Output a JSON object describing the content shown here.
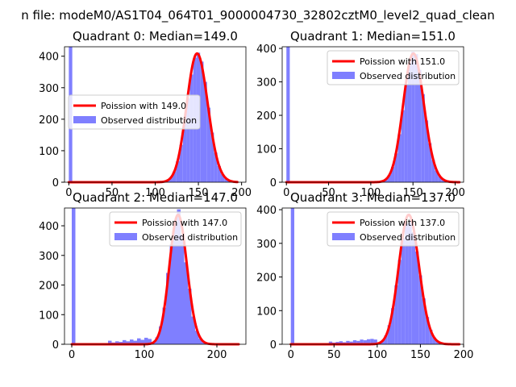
{
  "suptitle": "n file: modeM0/AS1T04_064T01_9000004730_32802cztM0_level2_quad_clean",
  "colors": {
    "hist": "#7f7fff",
    "fit": "#ff0000",
    "axis": "#000000"
  },
  "chart_data": [
    {
      "type": "bar+line",
      "title": "Quadrant 0: Median=149.0",
      "median": 149.0,
      "xlim": [
        -5,
        205
      ],
      "ylim": [
        0,
        430
      ],
      "xticks": [
        0,
        50,
        100,
        150,
        200
      ],
      "yticks": [
        0,
        100,
        200,
        300,
        400
      ],
      "bin_width": 4,
      "outlier_bins": [
        {
          "x": 0,
          "count": 430
        },
        {
          "x": 84,
          "count": 3
        },
        {
          "x": 88,
          "count": 3
        },
        {
          "x": 92,
          "count": 2
        },
        {
          "x": 96,
          "count": 1
        },
        {
          "x": 100,
          "count": 2
        },
        {
          "x": 104,
          "count": 1
        },
        {
          "x": 108,
          "count": 2
        },
        {
          "x": 112,
          "count": 4
        },
        {
          "x": 116,
          "count": 6
        }
      ],
      "fit_range": [
        0,
        195
      ],
      "legend": {
        "fit": "Poission with 149.0",
        "hist": "Observed distribution",
        "loc": "center-left"
      }
    },
    {
      "type": "bar+line",
      "title": "Quadrant 1: Median=151.0",
      "median": 151.0,
      "xlim": [
        -5,
        210
      ],
      "ylim": [
        0,
        405
      ],
      "xticks": [
        0,
        50,
        100,
        150,
        200
      ],
      "yticks": [
        0,
        100,
        200,
        300,
        400
      ],
      "bin_width": 4,
      "outlier_bins": [
        {
          "x": 0,
          "count": 405
        },
        {
          "x": 88,
          "count": 2
        },
        {
          "x": 92,
          "count": 2
        },
        {
          "x": 96,
          "count": 2
        },
        {
          "x": 100,
          "count": 1
        },
        {
          "x": 104,
          "count": 2
        },
        {
          "x": 108,
          "count": 2
        },
        {
          "x": 112,
          "count": 3
        },
        {
          "x": 116,
          "count": 5
        }
      ],
      "fit_range": [
        0,
        205
      ],
      "legend": {
        "fit": "Poission with 151.0",
        "hist": "Observed distribution",
        "loc": "upper-right"
      }
    },
    {
      "type": "bar+line",
      "title": "Quadrant 2: Median=147.0",
      "median": 147.0,
      "xlim": [
        -10,
        240
      ],
      "ylim": [
        0,
        460
      ],
      "xticks": [
        0,
        100,
        200
      ],
      "yticks": [
        0,
        100,
        200,
        300,
        400
      ],
      "bin_width": 5,
      "outlier_bins": [
        {
          "x": 0,
          "count": 460
        },
        {
          "x": 45,
          "count": 4
        },
        {
          "x": 50,
          "count": 12
        },
        {
          "x": 55,
          "count": 6
        },
        {
          "x": 60,
          "count": 10
        },
        {
          "x": 65,
          "count": 8
        },
        {
          "x": 70,
          "count": 14
        },
        {
          "x": 75,
          "count": 10
        },
        {
          "x": 80,
          "count": 16
        },
        {
          "x": 85,
          "count": 12
        },
        {
          "x": 90,
          "count": 20
        },
        {
          "x": 95,
          "count": 15
        },
        {
          "x": 100,
          "count": 22
        },
        {
          "x": 105,
          "count": 18
        }
      ],
      "fit_range": [
        0,
        230
      ],
      "legend": {
        "fit": "Poission with 147.0",
        "hist": "Observed distribution",
        "loc": "upper-right"
      }
    },
    {
      "type": "bar+line",
      "title": "Quadrant 3: Median=137.0",
      "median": 137.0,
      "xlim": [
        -10,
        200
      ],
      "ylim": [
        0,
        405
      ],
      "xticks": [
        0,
        50,
        100,
        150,
        200
      ],
      "yticks": [
        0,
        100,
        200,
        300,
        400
      ],
      "bin_width": 4,
      "outlier_bins": [
        {
          "x": 0,
          "count": 405
        },
        {
          "x": 40,
          "count": 3
        },
        {
          "x": 44,
          "count": 8
        },
        {
          "x": 48,
          "count": 5
        },
        {
          "x": 52,
          "count": 7
        },
        {
          "x": 56,
          "count": 9
        },
        {
          "x": 60,
          "count": 6
        },
        {
          "x": 64,
          "count": 10
        },
        {
          "x": 68,
          "count": 8
        },
        {
          "x": 72,
          "count": 12
        },
        {
          "x": 76,
          "count": 10
        },
        {
          "x": 80,
          "count": 14
        },
        {
          "x": 84,
          "count": 12
        },
        {
          "x": 88,
          "count": 15
        },
        {
          "x": 92,
          "count": 16
        },
        {
          "x": 96,
          "count": 14
        }
      ],
      "fit_range": [
        0,
        195
      ],
      "legend": {
        "fit": "Poission with 137.0",
        "hist": "Observed distribution",
        "loc": "upper-right"
      }
    }
  ]
}
